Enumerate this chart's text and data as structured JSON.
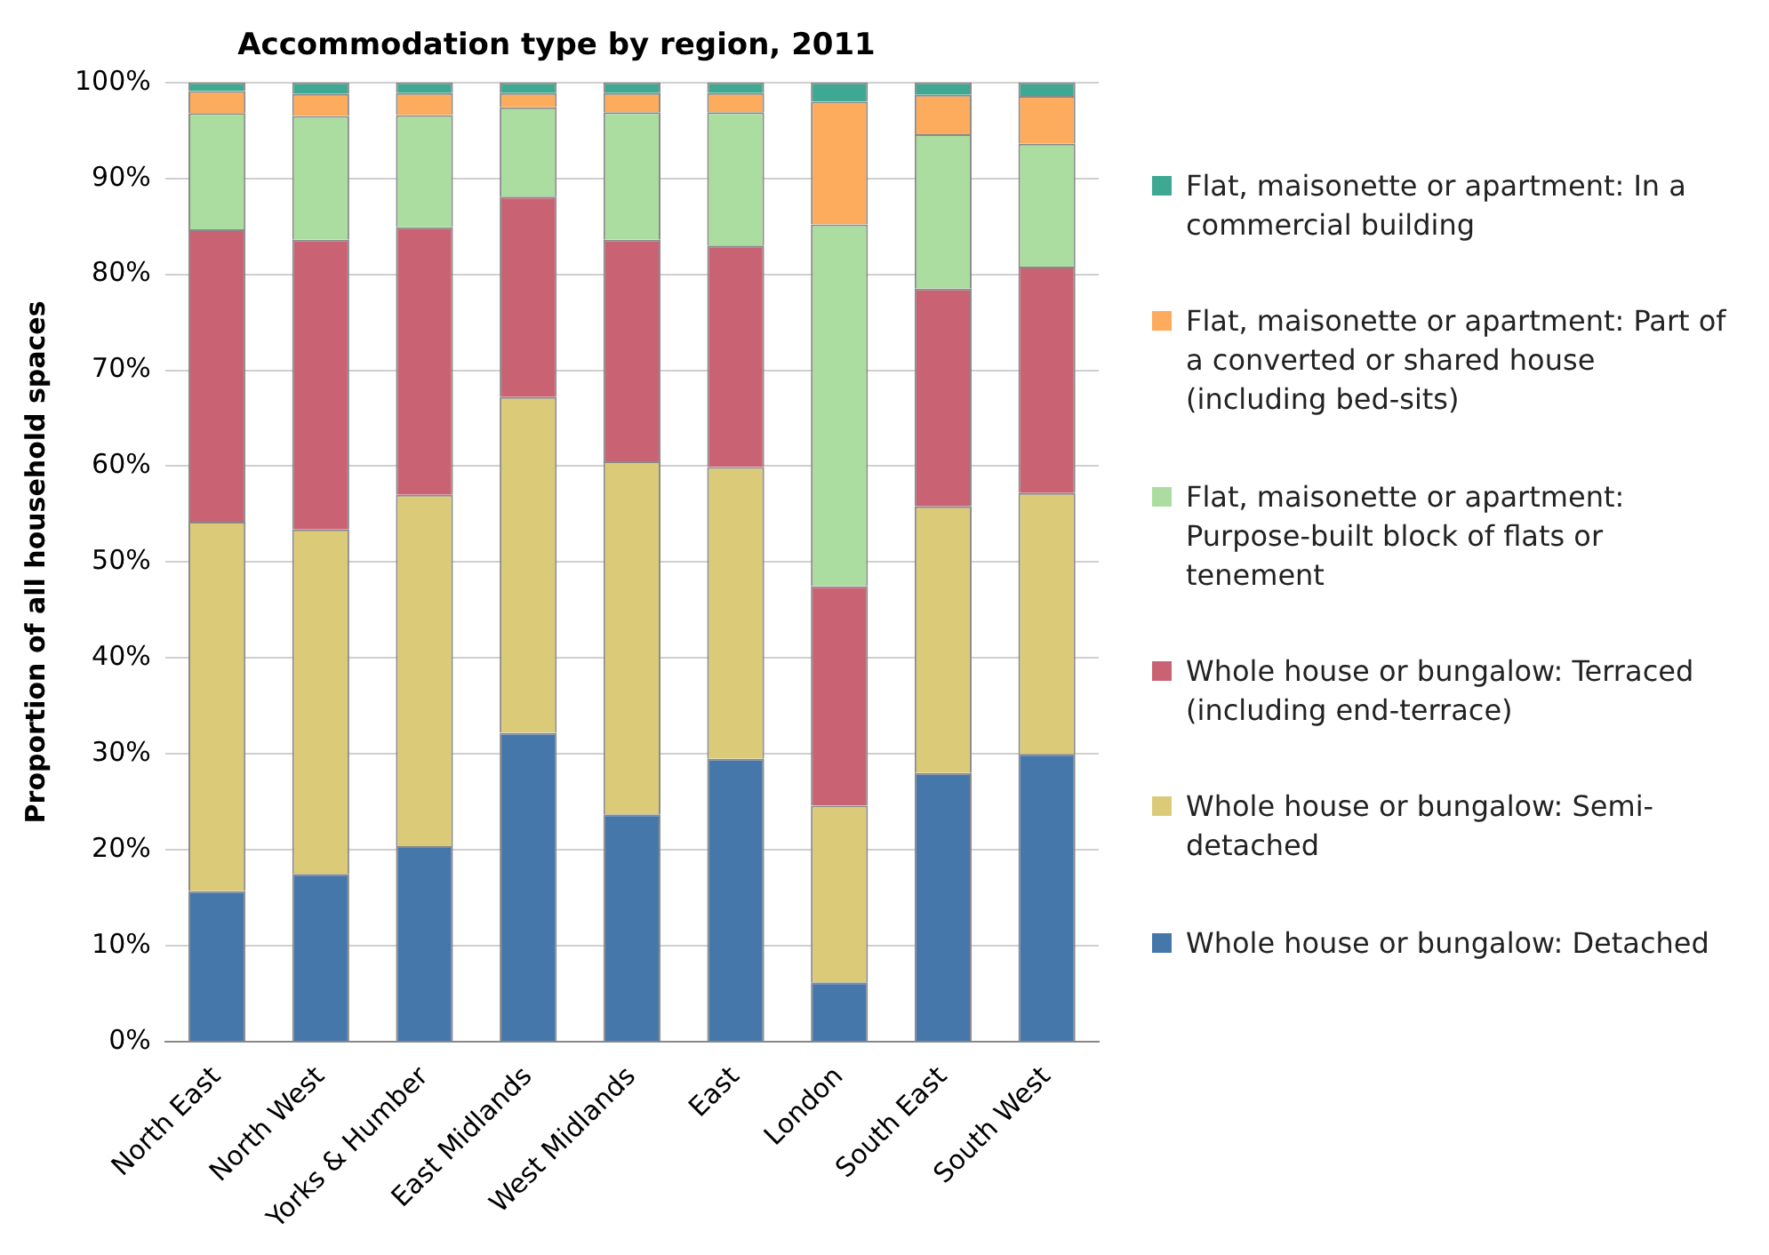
{
  "chart_data": {
    "type": "bar",
    "title": "Accommodation type by region, 2011",
    "ylabel": "Proportion of all household spaces",
    "categories": [
      "North East",
      "North West",
      "Yorks & Humber",
      "East Midlands",
      "West Midlands",
      "East",
      "London",
      "South East",
      "South West"
    ],
    "stacked": true,
    "ylim": [
      0,
      100
    ],
    "yticks": [
      {
        "value": 0,
        "label": "0%"
      },
      {
        "value": 10,
        "label": "10%"
      },
      {
        "value": 20,
        "label": "20%"
      },
      {
        "value": 30,
        "label": "30%"
      },
      {
        "value": 40,
        "label": "40%"
      },
      {
        "value": 50,
        "label": "50%"
      },
      {
        "value": 60,
        "label": "60%"
      },
      {
        "value": 70,
        "label": "70%"
      },
      {
        "value": 80,
        "label": "80%"
      },
      {
        "value": 90,
        "label": "90%"
      },
      {
        "value": 100,
        "label": "100%"
      }
    ],
    "grid": "y",
    "legend": "right",
    "series": [
      {
        "name": "Whole house or bungalow: Detached",
        "color": "#4677aa",
        "values": [
          15.7,
          17.5,
          20.4,
          32.2,
          23.7,
          29.5,
          6.2,
          28.0,
          30.0
        ]
      },
      {
        "name": "Whole house or bungalow: Semi-detached",
        "color": "#dbcb78",
        "values": [
          38.5,
          35.9,
          36.6,
          35.0,
          36.8,
          30.4,
          18.4,
          27.8,
          27.2
        ]
      },
      {
        "name": "Whole house or bungalow: Terraced (including end-terrace)",
        "color": "#c96374",
        "values": [
          30.5,
          30.2,
          27.9,
          20.9,
          23.1,
          23.1,
          22.9,
          22.7,
          23.6
        ]
      },
      {
        "name": "Flat, maisonette or apartment: Purpose-built block of flats or tenement",
        "color": "#abdca0",
        "values": [
          12.1,
          12.9,
          11.7,
          9.3,
          13.3,
          13.9,
          37.7,
          16.1,
          12.8
        ]
      },
      {
        "name": "Flat, maisonette or apartment: Part of a converted or shared house (including bed-sits)",
        "color": "#fdab5c",
        "values": [
          2.3,
          2.3,
          2.3,
          1.5,
          2.0,
          2.0,
          12.8,
          4.1,
          5.0
        ]
      },
      {
        "name": "Flat, maisonette or apartment: In a commercial building",
        "color": "#3fa892",
        "values": [
          0.9,
          1.2,
          1.1,
          1.1,
          1.1,
          1.1,
          2.0,
          1.3,
          1.4
        ]
      }
    ]
  }
}
